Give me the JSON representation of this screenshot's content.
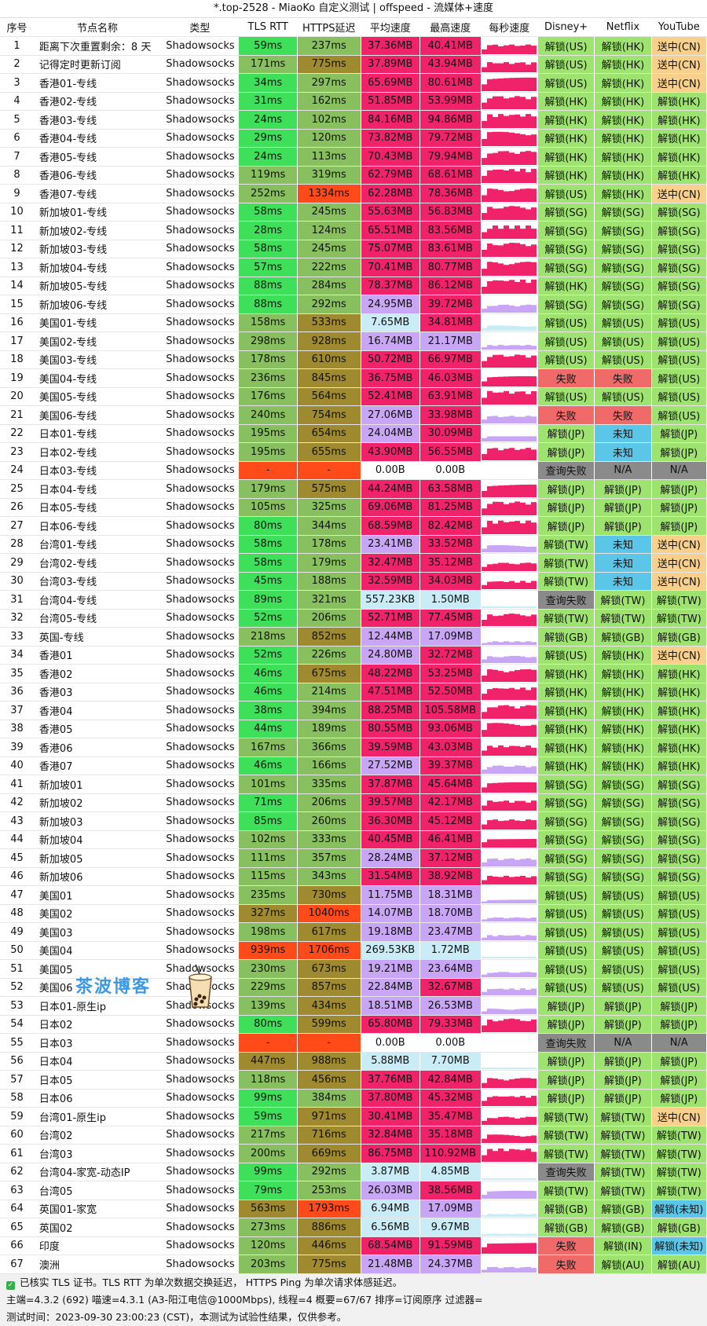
{
  "title": "*.top-2528 - MiaoKo 自定义测试 | offspeed - 流媒体+速度",
  "headers": [
    "序号",
    "节点名称",
    "类型",
    "TLS RTT",
    "HTTPS延迟",
    "平均速度",
    "最高速度",
    "每秒速度",
    "Disney+",
    "Netflix",
    "YouTube"
  ],
  "rows": [
    [
      "1",
      "距离下次重置剩余：8 天",
      "Shadowsocks",
      "59ms",
      "237ms",
      "37.36MB",
      "40.41MB",
      "解锁(US)",
      "解锁(HK)",
      "送中(CN)"
    ],
    [
      "2",
      "记得定时更新订阅",
      "Shadowsocks",
      "171ms",
      "775ms",
      "37.89MB",
      "43.94MB",
      "解锁(US)",
      "解锁(HK)",
      "送中(CN)"
    ],
    [
      "3",
      "香港01-专线",
      "Shadowsocks",
      "34ms",
      "297ms",
      "65.69MB",
      "80.61MB",
      "解锁(US)",
      "解锁(HK)",
      "送中(CN)"
    ],
    [
      "4",
      "香港02-专线",
      "Shadowsocks",
      "31ms",
      "162ms",
      "51.85MB",
      "53.99MB",
      "解锁(HK)",
      "解锁(HK)",
      "解锁(HK)"
    ],
    [
      "5",
      "香港03-专线",
      "Shadowsocks",
      "24ms",
      "102ms",
      "84.16MB",
      "94.86MB",
      "解锁(HK)",
      "解锁(HK)",
      "解锁(HK)"
    ],
    [
      "6",
      "香港04-专线",
      "Shadowsocks",
      "29ms",
      "120ms",
      "73.82MB",
      "79.72MB",
      "解锁(HK)",
      "解锁(HK)",
      "解锁(HK)"
    ],
    [
      "7",
      "香港05-专线",
      "Shadowsocks",
      "24ms",
      "113ms",
      "70.43MB",
      "79.94MB",
      "解锁(HK)",
      "解锁(HK)",
      "解锁(HK)"
    ],
    [
      "8",
      "香港06-专线",
      "Shadowsocks",
      "119ms",
      "319ms",
      "62.79MB",
      "68.61MB",
      "解锁(HK)",
      "解锁(HK)",
      "解锁(HK)"
    ],
    [
      "9",
      "香港07-专线",
      "Shadowsocks",
      "252ms",
      "1334ms",
      "62.28MB",
      "78.36MB",
      "解锁(US)",
      "解锁(HK)",
      "送中(CN)"
    ],
    [
      "10",
      "新加坡01-专线",
      "Shadowsocks",
      "58ms",
      "245ms",
      "55.63MB",
      "56.83MB",
      "解锁(SG)",
      "解锁(SG)",
      "解锁(SG)"
    ],
    [
      "11",
      "新加坡02-专线",
      "Shadowsocks",
      "28ms",
      "124ms",
      "65.51MB",
      "83.56MB",
      "解锁(SG)",
      "解锁(SG)",
      "解锁(SG)"
    ],
    [
      "12",
      "新加坡03-专线",
      "Shadowsocks",
      "58ms",
      "245ms",
      "75.07MB",
      "83.61MB",
      "解锁(SG)",
      "解锁(SG)",
      "解锁(SG)"
    ],
    [
      "13",
      "新加坡04-专线",
      "Shadowsocks",
      "57ms",
      "222ms",
      "70.41MB",
      "80.77MB",
      "解锁(SG)",
      "解锁(SG)",
      "解锁(SG)"
    ],
    [
      "14",
      "新加坡05-专线",
      "Shadowsocks",
      "88ms",
      "284ms",
      "78.37MB",
      "86.12MB",
      "解锁(HK)",
      "解锁(SG)",
      "解锁(SG)"
    ],
    [
      "15",
      "新加坡06-专线",
      "Shadowsocks",
      "88ms",
      "292ms",
      "24.95MB",
      "39.72MB",
      "解锁(SG)",
      "解锁(SG)",
      "解锁(SG)"
    ],
    [
      "16",
      "美国01-专线",
      "Shadowsocks",
      "158ms",
      "533ms",
      "7.65MB",
      "34.81MB",
      "解锁(US)",
      "解锁(US)",
      "解锁(US)"
    ],
    [
      "17",
      "美国02-专线",
      "Shadowsocks",
      "298ms",
      "928ms",
      "16.74MB",
      "21.17MB",
      "解锁(US)",
      "解锁(US)",
      "解锁(US)"
    ],
    [
      "18",
      "美国03-专线",
      "Shadowsocks",
      "178ms",
      "610ms",
      "50.72MB",
      "66.97MB",
      "解锁(US)",
      "解锁(US)",
      "解锁(US)"
    ],
    [
      "19",
      "美国04-专线",
      "Shadowsocks",
      "236ms",
      "845ms",
      "36.75MB",
      "46.03MB",
      "失败",
      "失败",
      "解锁(US)"
    ],
    [
      "20",
      "美国05-专线",
      "Shadowsocks",
      "176ms",
      "564ms",
      "52.41MB",
      "63.91MB",
      "解锁(US)",
      "解锁(US)",
      "解锁(US)"
    ],
    [
      "21",
      "美国06-专线",
      "Shadowsocks",
      "240ms",
      "754ms",
      "27.06MB",
      "33.98MB",
      "失败",
      "失败",
      "解锁(US)"
    ],
    [
      "22",
      "日本01-专线",
      "Shadowsocks",
      "195ms",
      "654ms",
      "24.04MB",
      "30.09MB",
      "解锁(JP)",
      "未知",
      "解锁(JP)"
    ],
    [
      "23",
      "日本02-专线",
      "Shadowsocks",
      "195ms",
      "655ms",
      "43.90MB",
      "56.55MB",
      "解锁(JP)",
      "未知",
      "解锁(JP)"
    ],
    [
      "24",
      "日本03-专线",
      "Shadowsocks",
      "-",
      "-",
      "0.00B",
      "0.00B",
      "查询失败",
      "N/A",
      "N/A"
    ],
    [
      "25",
      "日本04-专线",
      "Shadowsocks",
      "179ms",
      "575ms",
      "44.24MB",
      "63.58MB",
      "解锁(JP)",
      "解锁(JP)",
      "解锁(JP)"
    ],
    [
      "26",
      "日本05-专线",
      "Shadowsocks",
      "105ms",
      "325ms",
      "69.06MB",
      "81.25MB",
      "解锁(JP)",
      "解锁(JP)",
      "解锁(JP)"
    ],
    [
      "27",
      "日本06-专线",
      "Shadowsocks",
      "80ms",
      "344ms",
      "68.59MB",
      "82.42MB",
      "解锁(JP)",
      "解锁(JP)",
      "解锁(JP)"
    ],
    [
      "28",
      "台湾01-专线",
      "Shadowsocks",
      "58ms",
      "178ms",
      "23.41MB",
      "33.52MB",
      "解锁(TW)",
      "未知",
      "送中(CN)"
    ],
    [
      "29",
      "台湾02-专线",
      "Shadowsocks",
      "58ms",
      "179ms",
      "32.47MB",
      "35.12MB",
      "解锁(TW)",
      "未知",
      "送中(CN)"
    ],
    [
      "30",
      "台湾03-专线",
      "Shadowsocks",
      "45ms",
      "188ms",
      "32.59MB",
      "34.03MB",
      "解锁(TW)",
      "未知",
      "送中(CN)"
    ],
    [
      "31",
      "台湾04-专线",
      "Shadowsocks",
      "89ms",
      "321ms",
      "557.23KB",
      "1.50MB",
      "查询失败",
      "解锁(TW)",
      "解锁(TW)"
    ],
    [
      "32",
      "台湾05-专线",
      "Shadowsocks",
      "52ms",
      "206ms",
      "52.71MB",
      "77.45MB",
      "解锁(TW)",
      "解锁(TW)",
      "解锁(TW)"
    ],
    [
      "33",
      "英国-专线",
      "Shadowsocks",
      "218ms",
      "852ms",
      "12.44MB",
      "17.09MB",
      "解锁(GB)",
      "解锁(GB)",
      "解锁(GB)"
    ],
    [
      "34",
      "香港01",
      "Shadowsocks",
      "52ms",
      "226ms",
      "24.80MB",
      "32.72MB",
      "解锁(US)",
      "解锁(HK)",
      "送中(CN)"
    ],
    [
      "35",
      "香港02",
      "Shadowsocks",
      "46ms",
      "675ms",
      "48.22MB",
      "53.25MB",
      "解锁(HK)",
      "解锁(HK)",
      "解锁(HK)"
    ],
    [
      "36",
      "香港03",
      "Shadowsocks",
      "46ms",
      "214ms",
      "47.51MB",
      "52.50MB",
      "解锁(HK)",
      "解锁(HK)",
      "解锁(HK)"
    ],
    [
      "37",
      "香港04",
      "Shadowsocks",
      "38ms",
      "394ms",
      "88.25MB",
      "105.58MB",
      "解锁(HK)",
      "解锁(HK)",
      "解锁(HK)"
    ],
    [
      "38",
      "香港05",
      "Shadowsocks",
      "44ms",
      "189ms",
      "80.55MB",
      "93.06MB",
      "解锁(HK)",
      "解锁(HK)",
      "解锁(HK)"
    ],
    [
      "39",
      "香港06",
      "Shadowsocks",
      "167ms",
      "366ms",
      "39.59MB",
      "43.03MB",
      "解锁(HK)",
      "解锁(HK)",
      "解锁(HK)"
    ],
    [
      "40",
      "香港07",
      "Shadowsocks",
      "46ms",
      "166ms",
      "27.52MB",
      "39.37MB",
      "解锁(HK)",
      "解锁(HK)",
      "解锁(HK)"
    ],
    [
      "41",
      "新加坡01",
      "Shadowsocks",
      "101ms",
      "335ms",
      "37.87MB",
      "45.64MB",
      "解锁(SG)",
      "解锁(SG)",
      "解锁(SG)"
    ],
    [
      "42",
      "新加坡02",
      "Shadowsocks",
      "71ms",
      "206ms",
      "39.57MB",
      "42.17MB",
      "解锁(SG)",
      "解锁(SG)",
      "解锁(SG)"
    ],
    [
      "43",
      "新加坡03",
      "Shadowsocks",
      "85ms",
      "260ms",
      "36.30MB",
      "45.12MB",
      "解锁(SG)",
      "解锁(SG)",
      "解锁(SG)"
    ],
    [
      "44",
      "新加坡04",
      "Shadowsocks",
      "102ms",
      "333ms",
      "40.45MB",
      "46.41MB",
      "解锁(SG)",
      "解锁(SG)",
      "解锁(SG)"
    ],
    [
      "45",
      "新加坡05",
      "Shadowsocks",
      "111ms",
      "357ms",
      "28.24MB",
      "37.12MB",
      "解锁(SG)",
      "解锁(SG)",
      "解锁(SG)"
    ],
    [
      "46",
      "新加坡06",
      "Shadowsocks",
      "115ms",
      "343ms",
      "31.54MB",
      "38.92MB",
      "解锁(SG)",
      "解锁(SG)",
      "解锁(SG)"
    ],
    [
      "47",
      "美国01",
      "Shadowsocks",
      "235ms",
      "730ms",
      "11.75MB",
      "18.31MB",
      "解锁(US)",
      "解锁(US)",
      "解锁(US)"
    ],
    [
      "48",
      "美国02",
      "Shadowsocks",
      "327ms",
      "1040ms",
      "14.07MB",
      "18.70MB",
      "解锁(US)",
      "解锁(US)",
      "解锁(US)"
    ],
    [
      "49",
      "美国03",
      "Shadowsocks",
      "198ms",
      "617ms",
      "19.18MB",
      "23.47MB",
      "解锁(US)",
      "解锁(US)",
      "解锁(US)"
    ],
    [
      "50",
      "美国04",
      "Shadowsocks",
      "939ms",
      "1706ms",
      "269.53KB",
      "1.72MB",
      "解锁(US)",
      "解锁(US)",
      "解锁(US)"
    ],
    [
      "51",
      "美国05",
      "Shadowsocks",
      "230ms",
      "673ms",
      "19.21MB",
      "23.64MB",
      "解锁(US)",
      "解锁(US)",
      "解锁(US)"
    ],
    [
      "52",
      "美国06",
      "Shadowsocks",
      "229ms",
      "857ms",
      "22.84MB",
      "32.67MB",
      "解锁(US)",
      "解锁(US)",
      "解锁(US)"
    ],
    [
      "53",
      "日本01-原生ip",
      "Shadowsocks",
      "139ms",
      "434ms",
      "18.51MB",
      "26.53MB",
      "解锁(JP)",
      "解锁(JP)",
      "解锁(JP)"
    ],
    [
      "54",
      "日本02",
      "Shadowsocks",
      "80ms",
      "599ms",
      "65.80MB",
      "79.33MB",
      "解锁(JP)",
      "解锁(JP)",
      "解锁(JP)"
    ],
    [
      "55",
      "日本03",
      "Shadowsocks",
      "-",
      "-",
      "0.00B",
      "0.00B",
      "查询失败",
      "N/A",
      "N/A"
    ],
    [
      "56",
      "日本04",
      "Shadowsocks",
      "447ms",
      "988ms",
      "5.88MB",
      "7.70MB",
      "解锁(JP)",
      "解锁(JP)",
      "解锁(JP)"
    ],
    [
      "57",
      "日本05",
      "Shadowsocks",
      "118ms",
      "456ms",
      "37.76MB",
      "42.84MB",
      "解锁(JP)",
      "解锁(JP)",
      "解锁(JP)"
    ],
    [
      "58",
      "日本06",
      "Shadowsocks",
      "99ms",
      "384ms",
      "37.80MB",
      "45.32MB",
      "解锁(JP)",
      "解锁(JP)",
      "解锁(JP)"
    ],
    [
      "59",
      "台湾01-原生ip",
      "Shadowsocks",
      "59ms",
      "971ms",
      "30.41MB",
      "35.47MB",
      "解锁(TW)",
      "解锁(TW)",
      "送中(CN)"
    ],
    [
      "60",
      "台湾02",
      "Shadowsocks",
      "217ms",
      "716ms",
      "32.84MB",
      "35.18MB",
      "解锁(TW)",
      "解锁(TW)",
      "解锁(TW)"
    ],
    [
      "61",
      "台湾03",
      "Shadowsocks",
      "200ms",
      "669ms",
      "86.75MB",
      "110.92MB",
      "解锁(TW)",
      "解锁(TW)",
      "解锁(TW)"
    ],
    [
      "62",
      "台湾04-家宽-动态IP",
      "Shadowsocks",
      "99ms",
      "292ms",
      "3.87MB",
      "4.85MB",
      "查询失败",
      "解锁(TW)",
      "解锁(TW)"
    ],
    [
      "63",
      "台湾05",
      "Shadowsocks",
      "79ms",
      "253ms",
      "26.03MB",
      "38.56MB",
      "解锁(TW)",
      "解锁(TW)",
      "解锁(TW)"
    ],
    [
      "64",
      "英国01-家宽",
      "Shadowsocks",
      "563ms",
      "1793ms",
      "6.94MB",
      "17.09MB",
      "解锁(GB)",
      "解锁(GB)",
      "解锁(未知)"
    ],
    [
      "65",
      "英国02",
      "Shadowsocks",
      "273ms",
      "886ms",
      "6.56MB",
      "9.67MB",
      "解锁(GB)",
      "解锁(GB)",
      "解锁(GB)"
    ],
    [
      "66",
      "印度",
      "Shadowsocks",
      "120ms",
      "446ms",
      "68.54MB",
      "91.59MB",
      "失败",
      "解锁(IN)",
      "解锁(未知)"
    ],
    [
      "67",
      "澳洲",
      "Shadowsocks",
      "203ms",
      "775ms",
      "21.48MB",
      "24.37MB",
      "失败",
      "解锁(AU)",
      "解锁(AU)"
    ]
  ],
  "footer": {
    "line1": "已核实 TLS 证书。TLS RTT 为单次数据交换延迟， HTTPS Ping 为单次请求体感延迟。",
    "line2": "主端=4.3.2 (692) 喵速=4.3.1 (A3-阳江电信@1000Mbps), 线程=4 概要=67/67 排序=订阅原序 过滤器=",
    "line3": "测试时间：2023-09-30 23:00:23 (CST)，本测试为试验性结果，仅供参考。"
  },
  "watermark": "茶波博客",
  "colors": {
    "rtt_good": "#3ee05a",
    "rtt_mid": "#88c060",
    "rtt_bad": "#a08a30",
    "rtt_worse": "#ff4a1a",
    "speed_high": "#f0236a",
    "speed_mid": "#c9a6f5",
    "speed_low": "#c9ecf7",
    "unlock": "#9ee36f",
    "fail": "#f06a6a",
    "unknown": "#5bc6e8",
    "na": "#8a8a8a",
    "cn": "#f9d08b"
  },
  "icons": {
    "footer_check": "check-icon",
    "watermark_cup": "milk-tea-cup-icon"
  }
}
